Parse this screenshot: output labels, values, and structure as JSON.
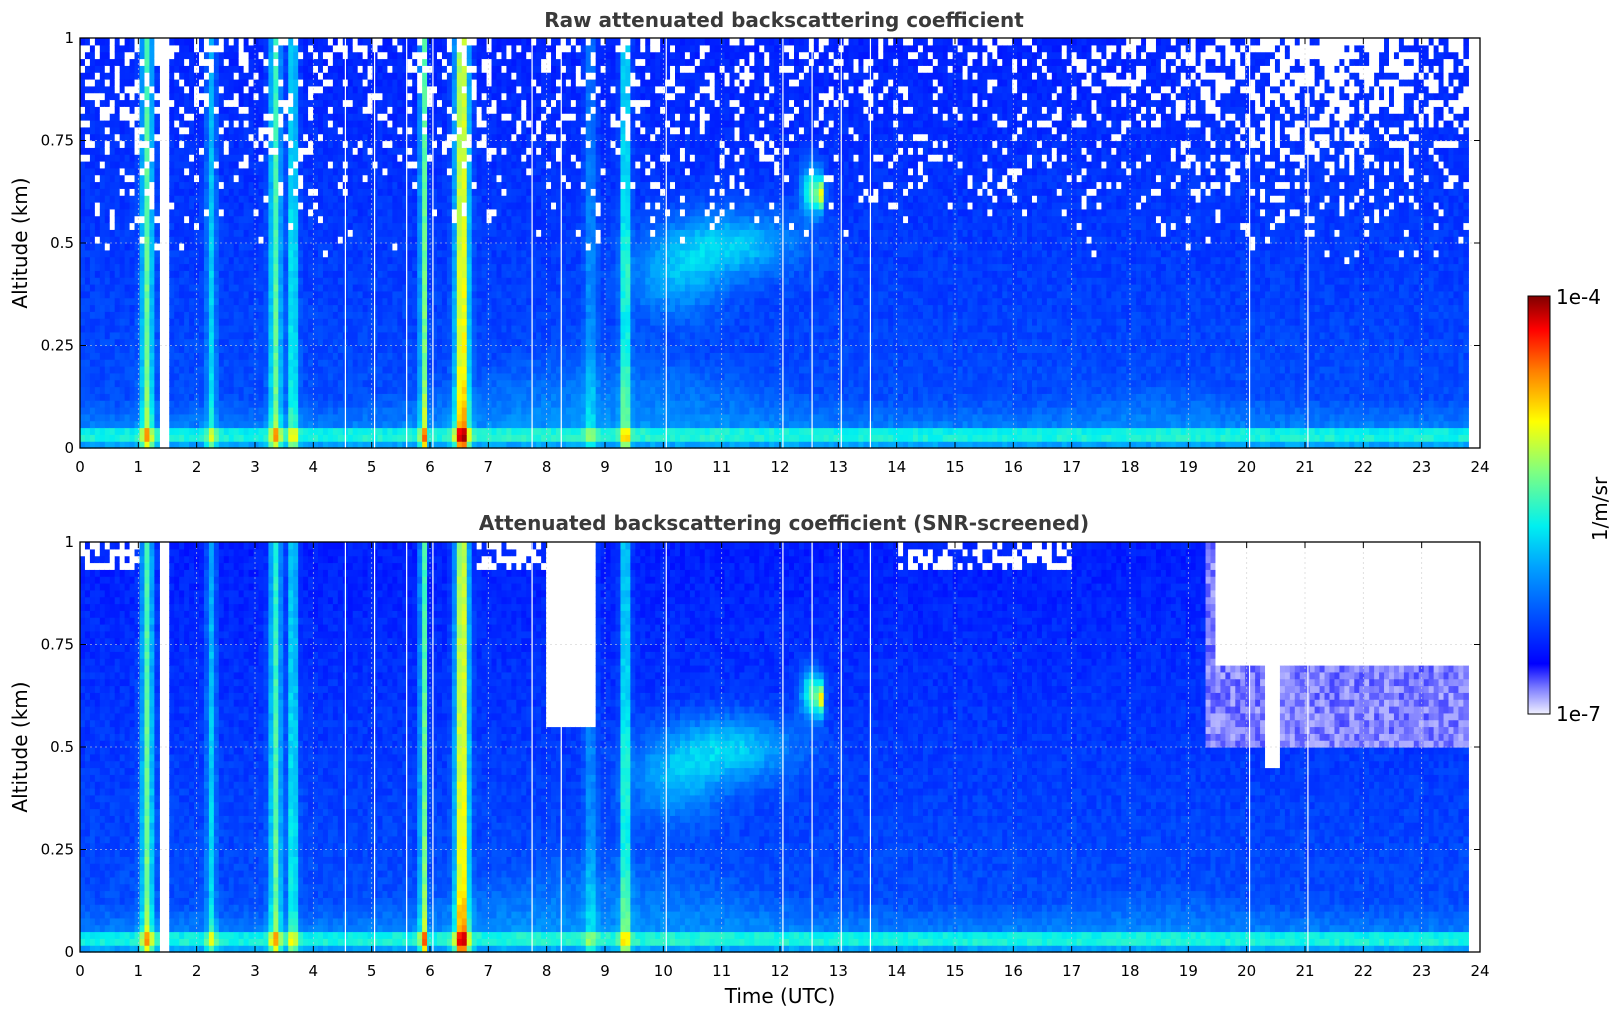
{
  "chart_data": [
    {
      "type": "heatmap",
      "title": "Raw attenuated backscattering coefficient",
      "xlabel": "",
      "ylabel": "Altitude (km)",
      "xlim": [
        0,
        24
      ],
      "ylim": [
        0,
        1
      ],
      "xticks": [
        "0",
        "1",
        "2",
        "3",
        "4",
        "5",
        "6",
        "7",
        "8",
        "9",
        "10",
        "11",
        "12",
        "13",
        "14",
        "15",
        "16",
        "17",
        "18",
        "19",
        "20",
        "21",
        "22",
        "23",
        "24"
      ],
      "yticks": [
        "0",
        "0.25",
        "0.5",
        "0.75",
        "1"
      ],
      "grid": true,
      "data_time_range": [
        0,
        23.8
      ],
      "gaps": [
        [
          1.4,
          1.55
        ]
      ],
      "features": [
        {
          "name": "vertical plume",
          "time": [
            1.0,
            1.3
          ],
          "intensity": 0.6
        },
        {
          "name": "vertical plume",
          "time": [
            2.15,
            2.35
          ],
          "intensity": 0.45
        },
        {
          "name": "vertical plume",
          "time": [
            3.2,
            3.75
          ],
          "intensity": 0.6
        },
        {
          "name": "vertical plume",
          "time": [
            5.8,
            5.95
          ],
          "intensity": 0.75
        },
        {
          "name": "vertical plume",
          "time": [
            6.45,
            6.8
          ],
          "intensity": 0.8
        },
        {
          "name": "vertical plume",
          "time": [
            9.25,
            9.45
          ],
          "intensity": 0.55
        },
        {
          "name": "elevated aerosol layer",
          "time": [
            10.0,
            12.0
          ],
          "altitude": [
            0.4,
            0.6
          ],
          "intensity": 0.45
        },
        {
          "name": "peak",
          "time": [
            12.4,
            12.7
          ],
          "altitude": [
            0.55,
            0.7
          ],
          "intensity": 0.95
        },
        {
          "name": "boundary layer",
          "time": [
            7,
            10
          ],
          "altitude": [
            0.05,
            0.3
          ],
          "intensity": 0.4
        }
      ]
    },
    {
      "type": "heatmap",
      "title": "Attenuated backscattering coefficient (SNR-screened)",
      "xlabel": "Time (UTC)",
      "ylabel": "Altitude (km)",
      "xlim": [
        0,
        24
      ],
      "ylim": [
        0,
        1
      ],
      "xticks": [
        "0",
        "1",
        "2",
        "3",
        "4",
        "5",
        "6",
        "7",
        "8",
        "9",
        "10",
        "11",
        "12",
        "13",
        "14",
        "15",
        "16",
        "17",
        "18",
        "19",
        "20",
        "21",
        "22",
        "23",
        "24"
      ],
      "yticks": [
        "0",
        "0.25",
        "0.5",
        "0.75",
        "1"
      ],
      "grid": true,
      "data_time_range": [
        0,
        23.8
      ],
      "gaps": [
        [
          1.4,
          1.55
        ]
      ],
      "masked_regions": [
        {
          "time": [
            8.0,
            8.8
          ],
          "altitude_from": 0.55
        },
        {
          "time": [
            19.5,
            23.8
          ],
          "altitude_from": 0.7
        },
        {
          "time": [
            20.3,
            20.6
          ],
          "altitude_from": 0.45
        }
      ]
    }
  ],
  "colorbar": {
    "label": "1/m/sr",
    "min_label": "1e-7",
    "max_label": "1e-4",
    "scale": "log",
    "colormap": "jet"
  }
}
